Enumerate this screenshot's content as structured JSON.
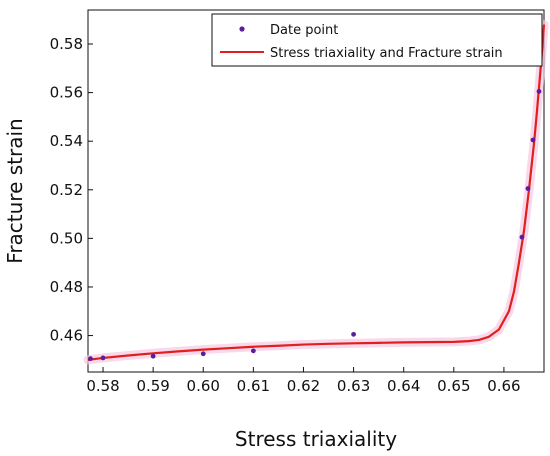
{
  "chart_data": {
    "type": "line",
    "xlabel": "Stress triaxiality",
    "ylabel": "Fracture strain",
    "xlim": [
      0.577,
      0.668
    ],
    "ylim": [
      0.445,
      0.594
    ],
    "x_ticks": [
      0.58,
      0.59,
      0.6,
      0.61,
      0.62,
      0.63,
      0.64,
      0.65,
      0.66
    ],
    "x_tick_labels": [
      "0.58",
      "0.59",
      "0.60",
      "0.61",
      "0.62",
      "0.63",
      "0.64",
      "0.65",
      "0.66"
    ],
    "y_ticks": [
      0.46,
      0.48,
      0.5,
      0.52,
      0.54,
      0.56,
      0.58
    ],
    "y_tick_labels": [
      "0.46",
      "0.48",
      "0.50",
      "0.52",
      "0.54",
      "0.56",
      "0.58"
    ],
    "grid": false,
    "legend_position": "top-right",
    "series": [
      {
        "name": "Date point",
        "kind": "scatter",
        "color": "#5b1f9a",
        "points": [
          [
            0.5775,
            0.4505
          ],
          [
            0.58,
            0.4508
          ],
          [
            0.59,
            0.4515
          ],
          [
            0.6,
            0.4525
          ],
          [
            0.61,
            0.4537
          ],
          [
            0.63,
            0.4605
          ],
          [
            0.6636,
            0.5005
          ],
          [
            0.6648,
            0.5205
          ],
          [
            0.6658,
            0.5405
          ],
          [
            0.667,
            0.5605
          ]
        ]
      },
      {
        "name": "Stress triaxiality and Fracture strain",
        "kind": "line",
        "color": "#e0201c",
        "points": [
          [
            0.577,
            0.45
          ],
          [
            0.58,
            0.4508
          ],
          [
            0.585,
            0.4518
          ],
          [
            0.59,
            0.4527
          ],
          [
            0.595,
            0.4535
          ],
          [
            0.6,
            0.4542
          ],
          [
            0.605,
            0.4548
          ],
          [
            0.61,
            0.4554
          ],
          [
            0.615,
            0.4558
          ],
          [
            0.62,
            0.4563
          ],
          [
            0.625,
            0.4566
          ],
          [
            0.63,
            0.4568
          ],
          [
            0.635,
            0.457
          ],
          [
            0.64,
            0.4572
          ],
          [
            0.645,
            0.4573
          ],
          [
            0.65,
            0.4574
          ],
          [
            0.653,
            0.4577
          ],
          [
            0.655,
            0.4582
          ],
          [
            0.657,
            0.4595
          ],
          [
            0.659,
            0.4625
          ],
          [
            0.661,
            0.47
          ],
          [
            0.662,
            0.478
          ],
          [
            0.663,
            0.49
          ],
          [
            0.664,
            0.503
          ],
          [
            0.665,
            0.52
          ],
          [
            0.666,
            0.539
          ],
          [
            0.6665,
            0.55
          ],
          [
            0.667,
            0.562
          ],
          [
            0.6675,
            0.574
          ],
          [
            0.668,
            0.588
          ]
        ]
      }
    ]
  }
}
